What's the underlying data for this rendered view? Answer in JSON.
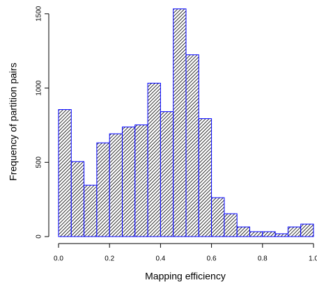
{
  "chart_data": {
    "type": "histogram",
    "xlabel": "Mapping efficiency",
    "ylabel": "Frequency of partition pairs",
    "bins": [
      0,
      0.05,
      0.1,
      0.15,
      0.2,
      0.25,
      0.3,
      0.35,
      0.4,
      0.45,
      0.5,
      0.55,
      0.6,
      0.65,
      0.7,
      0.75,
      0.8,
      0.85,
      0.9,
      0.95,
      1
    ],
    "values": [
      855,
      505,
      346,
      631,
      692,
      738,
      752,
      1033,
      841,
      1533,
      1224,
      794,
      262,
      154,
      65,
      33,
      33,
      19,
      65,
      84
    ],
    "color": "#0000ff",
    "xlim": [
      0,
      1
    ],
    "ylim": [
      0,
      1560
    ],
    "xticks": [
      {
        "value": 0,
        "label": "0.0"
      },
      0.2,
      0.4,
      0.6,
      0.8,
      {
        "value": 1,
        "label": "1.0"
      }
    ],
    "yticks": [
      0,
      500,
      1000,
      1500
    ]
  }
}
